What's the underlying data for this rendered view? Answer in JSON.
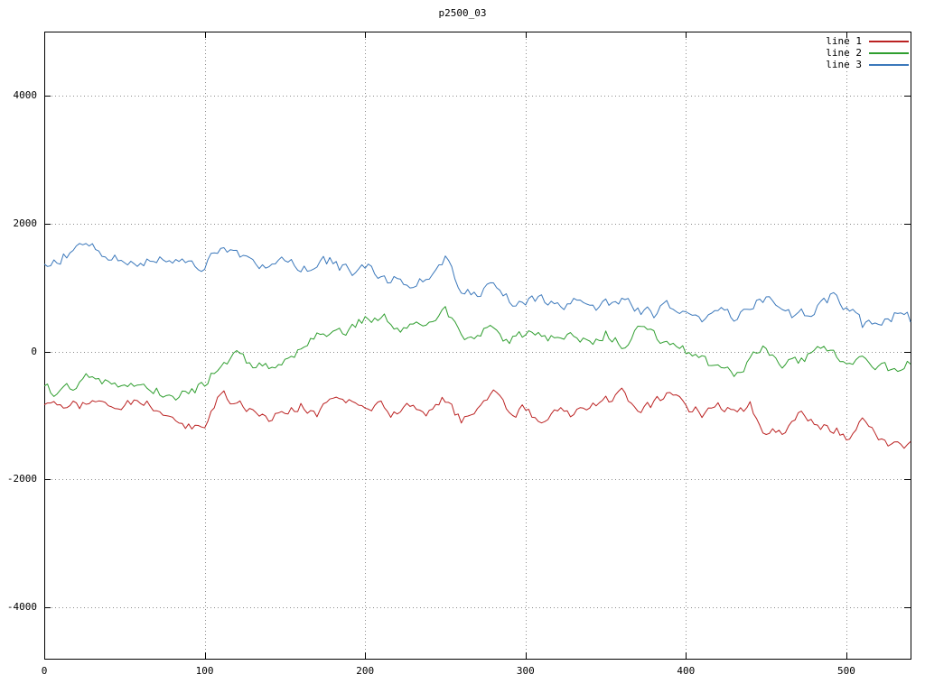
{
  "chart_data": {
    "type": "line",
    "title": "p2500_03",
    "xlabel": "",
    "ylabel": "",
    "xlim": [
      0,
      540
    ],
    "ylim": [
      -4800,
      5000
    ],
    "xticks": [
      0,
      100,
      200,
      300,
      400,
      500
    ],
    "yticks": [
      -4000,
      -2000,
      0,
      2000,
      4000
    ],
    "grid": "dotted",
    "grid_color": "#8c8c8c",
    "border_color": "#000000",
    "background": "#ffffff",
    "legend_position": "top-right-inside",
    "keypoint_x": {
      "start": 0,
      "step": 10,
      "count": 55
    },
    "series": [
      {
        "name": "line 1",
        "color": "#bb2222",
        "noise": 80,
        "y": [
          -800,
          -950,
          -850,
          -800,
          -850,
          -800,
          -750,
          -900,
          -1150,
          -1200,
          -1100,
          -650,
          -800,
          -900,
          -1000,
          -950,
          -850,
          -950,
          -800,
          -750,
          -900,
          -800,
          -1000,
          -800,
          -950,
          -750,
          -1100,
          -900,
          -650,
          -1000,
          -900,
          -1050,
          -900,
          -1000,
          -850,
          -800,
          -700,
          -900,
          -800,
          -700,
          -850,
          -950,
          -800,
          -900,
          -850,
          -1250,
          -1300,
          -1000,
          -1100,
          -1200,
          -1300,
          -1100,
          -1400,
          -1500,
          -1450
        ]
      },
      {
        "name": "line 2",
        "color": "#2f9e2f",
        "noise": 80,
        "y": [
          -600,
          -650,
          -500,
          -400,
          -450,
          -500,
          -450,
          -600,
          -700,
          -650,
          -500,
          -150,
          -50,
          -200,
          -250,
          -100,
          0,
          250,
          300,
          350,
          500,
          550,
          400,
          350,
          450,
          600,
          200,
          300,
          400,
          150,
          250,
          200,
          250,
          200,
          150,
          300,
          100,
          400,
          250,
          100,
          0,
          -100,
          -300,
          -400,
          -150,
          50,
          -250,
          -150,
          0,
          -50,
          -100,
          -150,
          -250,
          -300,
          -150
        ]
      },
      {
        "name": "line 3",
        "color": "#3b78bb",
        "noise": 90,
        "y": [
          1450,
          1500,
          1600,
          1700,
          1450,
          1400,
          1400,
          1450,
          1500,
          1350,
          1350,
          1600,
          1650,
          1300,
          1250,
          1450,
          1300,
          1350,
          1400,
          1250,
          1300,
          1200,
          1100,
          950,
          1200,
          1450,
          850,
          950,
          1000,
          800,
          750,
          800,
          700,
          750,
          600,
          700,
          750,
          650,
          600,
          700,
          500,
          550,
          600,
          550,
          750,
          800,
          550,
          500,
          650,
          850,
          700,
          400,
          500,
          600,
          500
        ]
      }
    ]
  }
}
